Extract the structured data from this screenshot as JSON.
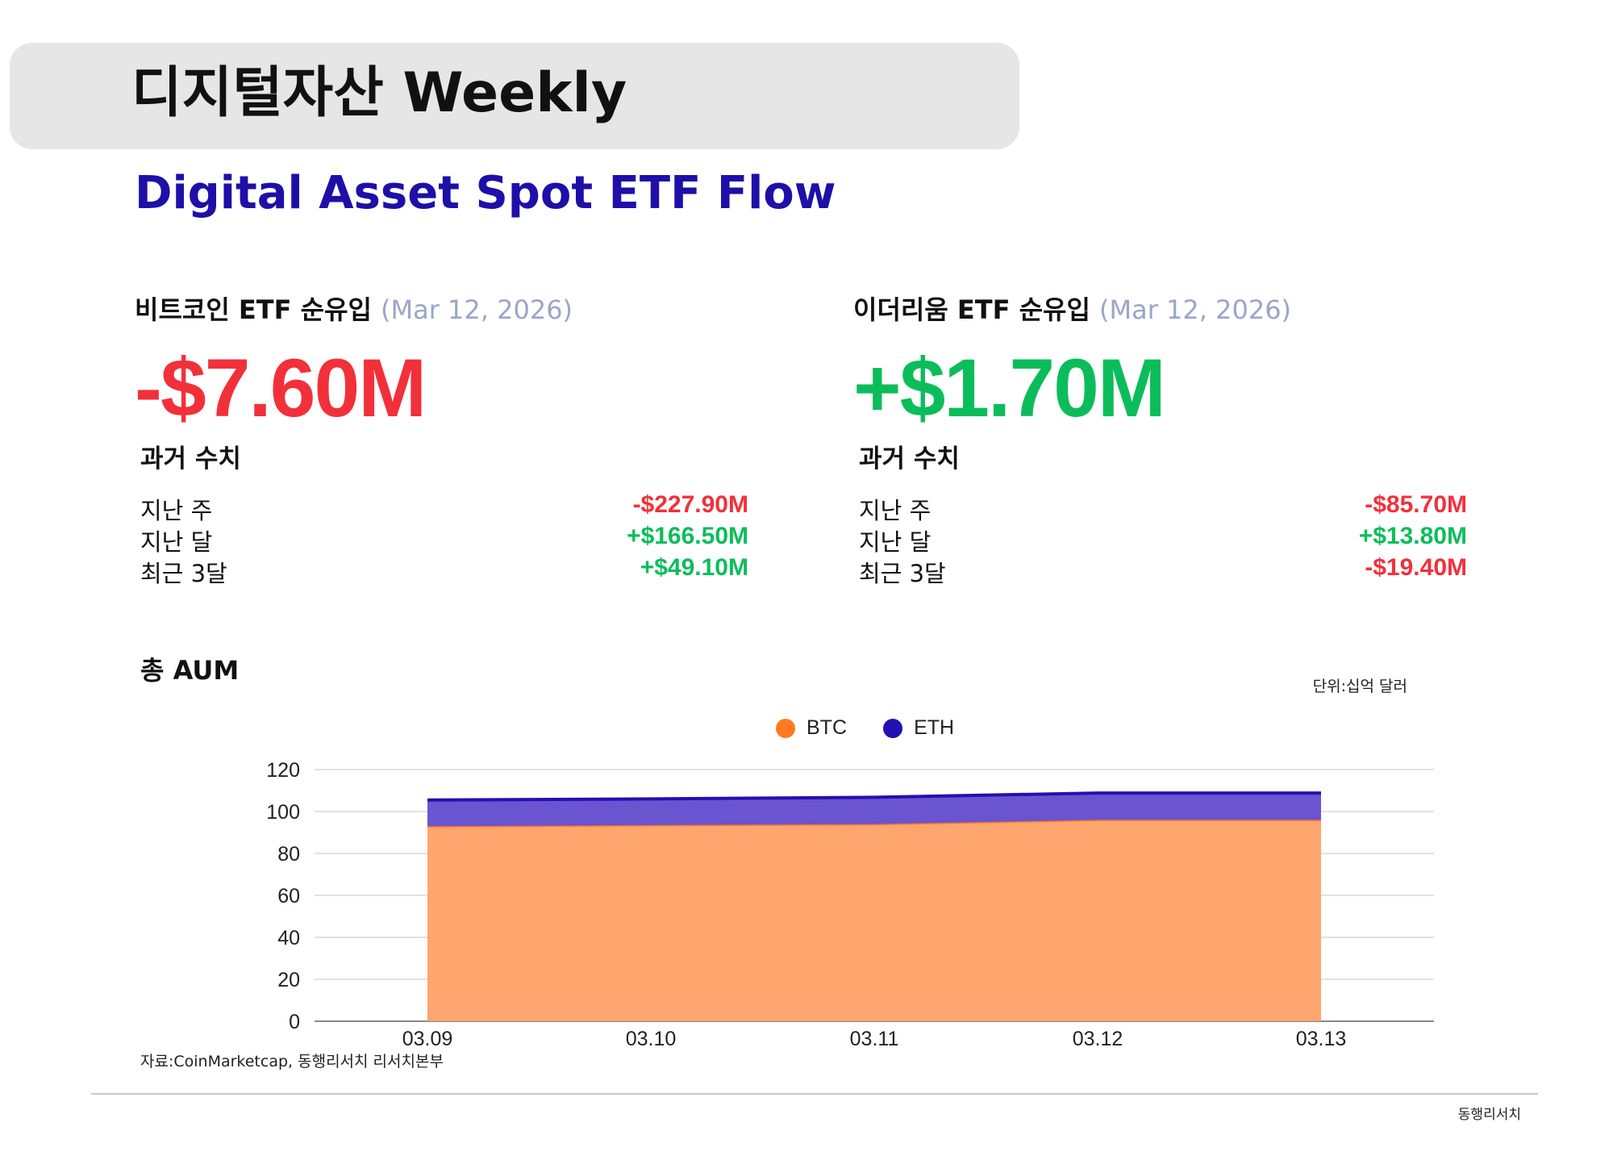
{
  "header": {
    "title": "디지털자산 Weekly",
    "subtitle": "Digital Asset Spot ETF Flow"
  },
  "colors": {
    "negative": "#f2303a",
    "positive": "#0bbd5a",
    "btc": "#ff7a1f",
    "btc_fill": "#ffa56e",
    "eth": "#2310b0",
    "eth_fill": "#6a54d0",
    "subtitle": "#1e0fa8"
  },
  "btc_panel": {
    "label": "비트코인 ETF 순유입",
    "date": "(Mar 12, 2026)",
    "value": "-$7.60M",
    "past_title": "과거 수치",
    "rows": [
      {
        "label": "지난 주",
        "value": "-$227.90M",
        "sign": "neg"
      },
      {
        "label": "지난 달",
        "value": "+$166.50M",
        "sign": "pos"
      },
      {
        "label": "최근 3달",
        "value": "+$49.10M",
        "sign": "pos"
      }
    ]
  },
  "eth_panel": {
    "label": "이더리움 ETF 순유입",
    "date": "(Mar 12, 2026)",
    "value": "+$1.70M",
    "past_title": "과거 수치",
    "rows": [
      {
        "label": "지난 주",
        "value": "-$85.70M",
        "sign": "neg"
      },
      {
        "label": "지난 달",
        "value": "+$13.80M",
        "sign": "pos"
      },
      {
        "label": "최근 3달",
        "value": "-$19.40M",
        "sign": "neg"
      }
    ]
  },
  "aum": {
    "title": "총 AUM",
    "unit": "단위:십억 달러",
    "source": "자료:CoinMarketcap, 동행리서치 리서치본부"
  },
  "footer": {
    "brand": "동행리서치"
  },
  "chart_data": {
    "type": "area",
    "stacked": true,
    "categories": [
      "03.09",
      "03.10",
      "03.11",
      "03.12",
      "03.13"
    ],
    "series": [
      {
        "name": "BTC",
        "values": [
          93,
          93.5,
          94,
          96,
          96
        ]
      },
      {
        "name": "ETH",
        "values": [
          12.5,
          12.5,
          12.8,
          12.8,
          12.8
        ]
      }
    ],
    "ylim": [
      0,
      120
    ],
    "yticks": [
      0,
      20,
      40,
      60,
      80,
      100,
      120
    ],
    "grid": true,
    "legend": "top-center"
  }
}
